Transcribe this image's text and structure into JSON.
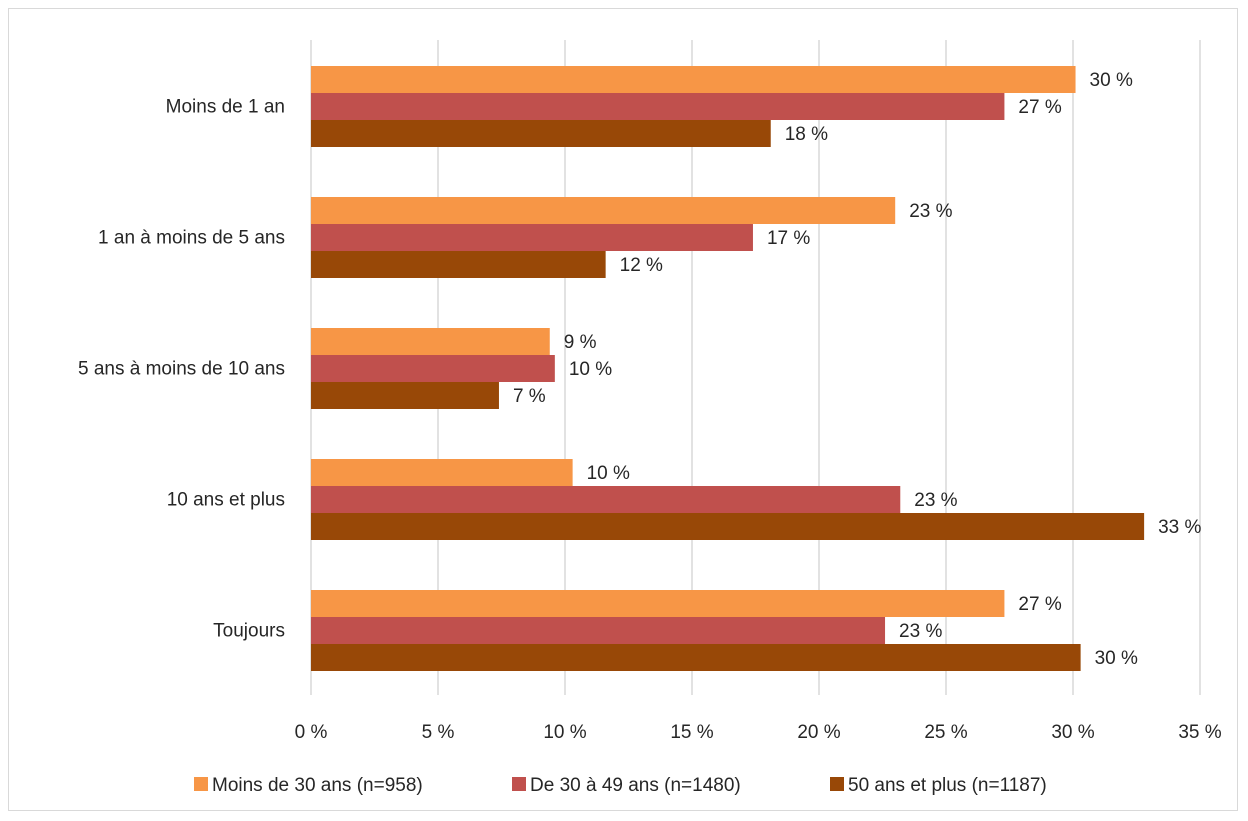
{
  "chart_data": {
    "type": "bar",
    "orientation": "horizontal",
    "categories": [
      "Moins de 1 an",
      "1 an à moins de 5 ans",
      "5 ans à moins de 10 ans",
      "10 ans et plus",
      "Toujours"
    ],
    "series": [
      {
        "name": "Moins de 30 ans (n=958)",
        "color": "#f79646",
        "values": [
          30.1,
          23.0,
          9.4,
          10.3,
          27.3
        ],
        "labels": [
          "30 %",
          "23 %",
          "9 %",
          "10 %",
          "27 %"
        ]
      },
      {
        "name": "De 30 à 49 ans (n=1480)",
        "color": "#c0504d",
        "values": [
          27.3,
          17.4,
          9.6,
          23.2,
          22.6
        ],
        "labels": [
          "27 %",
          "17 %",
          "10 %",
          "23 %",
          "23 %"
        ]
      },
      {
        "name": "50 ans et plus (n=1187)",
        "color": "#984807",
        "values": [
          18.1,
          11.6,
          7.4,
          32.8,
          30.3
        ],
        "labels": [
          "18 %",
          "12 %",
          "7 %",
          "33 %",
          "30 %"
        ]
      }
    ],
    "xlim": [
      0,
      35
    ],
    "xticks": [
      0,
      5,
      10,
      15,
      20,
      25,
      30,
      35
    ],
    "xtick_labels": [
      "0 %",
      "5 %",
      "10 %",
      "15 %",
      "20 %",
      "25 %",
      "30 %",
      "35 %"
    ],
    "grid": true,
    "legend_position": "bottom",
    "title": "",
    "xlabel": "",
    "ylabel": ""
  }
}
